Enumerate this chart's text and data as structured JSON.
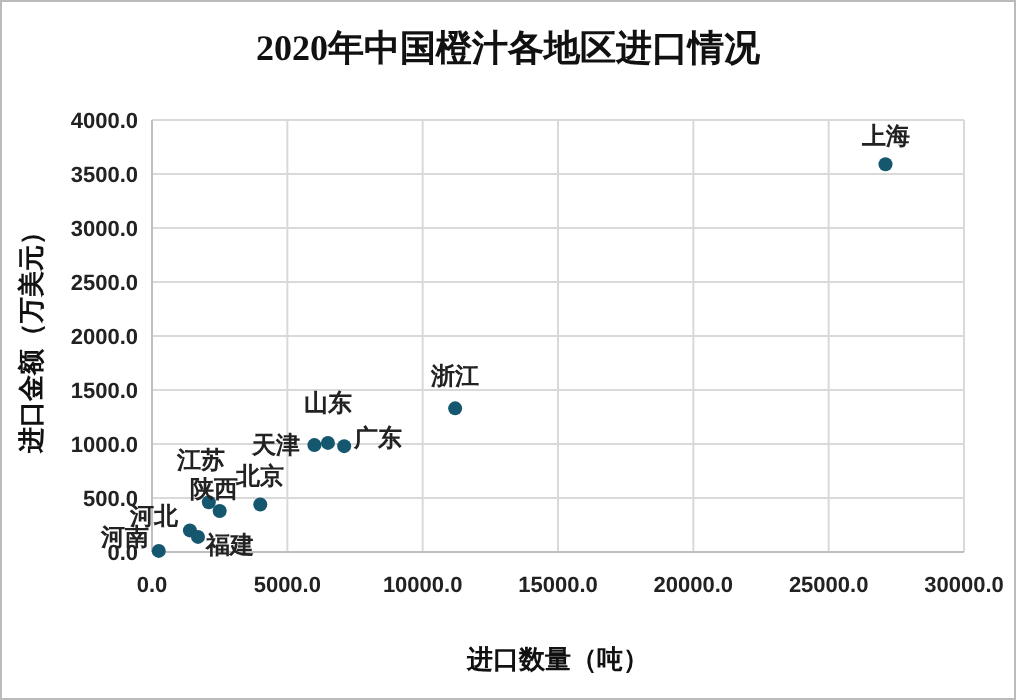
{
  "chart_data": {
    "type": "scatter",
    "title": "2020年中国橙汁各地区进口情况",
    "xlabel": "进口数量（吨）",
    "ylabel": "进口金额（万美元）",
    "series": [
      {
        "color": "#15576e",
        "x": [
          27100,
          11200,
          6500,
          6000,
          7100,
          4000,
          2500,
          2100,
          1400,
          1700,
          250
        ],
        "values": [
          3590,
          1330,
          1010,
          990,
          980,
          440,
          380,
          460,
          200,
          140,
          10
        ]
      }
    ],
    "annotations": [
      {
        "text": "上海",
        "x": 27100,
        "y": 3590
      },
      {
        "text": "浙江",
        "x": 11200,
        "y": 1330
      },
      {
        "text": "山东",
        "x": 6500,
        "y": 1010
      },
      {
        "text": "天津",
        "x": 6000,
        "y": 990
      },
      {
        "text": "广东",
        "x": 7100,
        "y": 980
      },
      {
        "text": "北京",
        "x": 4000,
        "y": 440
      },
      {
        "text": "陕西",
        "x": 2500,
        "y": 380
      },
      {
        "text": "江苏",
        "x": 2100,
        "y": 460
      },
      {
        "text": "河北",
        "x": 1400,
        "y": 200
      },
      {
        "text": "福建",
        "x": 1700,
        "y": 140
      },
      {
        "text": "河南",
        "x": 250,
        "y": 10
      }
    ],
    "xlim": [
      0,
      30000
    ],
    "ylim": [
      0,
      4000
    ],
    "xticks": [
      {
        "value": 0,
        "label": "0.0"
      },
      {
        "value": 5000,
        "label": "5000.0"
      },
      {
        "value": 10000,
        "label": "10000.0"
      },
      {
        "value": 15000,
        "label": "15000.0"
      },
      {
        "value": 20000,
        "label": "20000.0"
      },
      {
        "value": 25000,
        "label": "25000.0"
      },
      {
        "value": 30000,
        "label": "30000.0"
      }
    ],
    "yticks": [
      {
        "value": 0,
        "label": "0.0"
      },
      {
        "value": 500,
        "label": "500.0"
      },
      {
        "value": 1000,
        "label": "1000.0"
      },
      {
        "value": 1500,
        "label": "1500.0"
      },
      {
        "value": 2000,
        "label": "2000.0"
      },
      {
        "value": 2500,
        "label": "2500.0"
      },
      {
        "value": 3000,
        "label": "3000.0"
      },
      {
        "value": 3500,
        "label": "3500.0"
      },
      {
        "value": 4000,
        "label": "4000.0"
      }
    ],
    "grid": true,
    "marker": "circle"
  }
}
